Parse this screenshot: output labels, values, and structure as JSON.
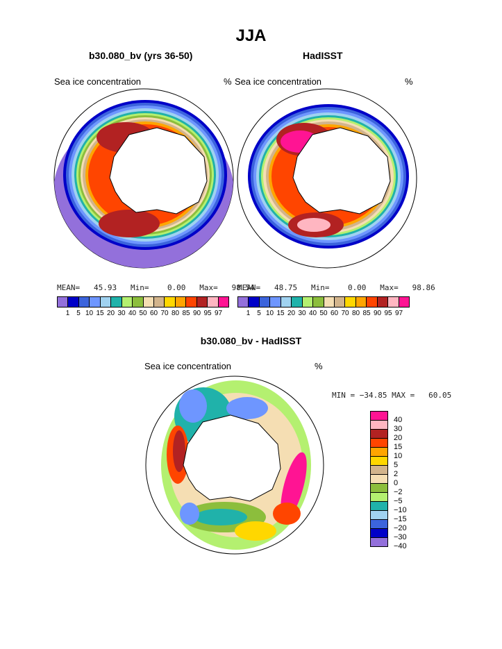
{
  "page": {
    "title": "JJA",
    "panel_left_title": "b30.080_bv (yrs 36-50)",
    "panel_right_title": "HadISST",
    "panel_diff_title": "b30.080_bv - HadISST",
    "variable_label": "Sea ice concentration",
    "unit_label": "%"
  },
  "stats": {
    "left": "MEAN=   45.93   Min=    0.00   Max=   98.54",
    "right": "MEAN=   48.75   Min=    0.00   Max=   98.86",
    "diff": "MIN = −34.85 MAX =   60.05"
  },
  "colorbar_abs": {
    "colors": [
      "#9370db",
      "#0000c8",
      "#3c64dc",
      "#6e96ff",
      "#a0d2f0",
      "#20b2aa",
      "#b4f070",
      "#8cbe3c",
      "#f5deb3",
      "#d2b48c",
      "#ffd700",
      "#ffa500",
      "#ff4500",
      "#b22222",
      "#ffb6c1",
      "#ff1493"
    ],
    "labels": [
      "1",
      "5",
      "10",
      "15",
      "20",
      "30",
      "40",
      "50",
      "60",
      "70",
      "80",
      "85",
      "90",
      "95",
      "97"
    ]
  },
  "colorbar_diff": {
    "colors": [
      "#ff1493",
      "#ffb6c1",
      "#b22222",
      "#ff4500",
      "#ffa500",
      "#ffd700",
      "#d2b48c",
      "#f5deb3",
      "#8cbe3c",
      "#b4f070",
      "#20b2aa",
      "#a0d2f0",
      "#3c64dc",
      "#0000c8",
      "#9370db"
    ],
    "labels": [
      "40",
      "30",
      "20",
      "15",
      "10",
      "5",
      "2",
      "0",
      "−2",
      "−5",
      "−10",
      "−15",
      "−20",
      "−30",
      "−40"
    ]
  }
}
